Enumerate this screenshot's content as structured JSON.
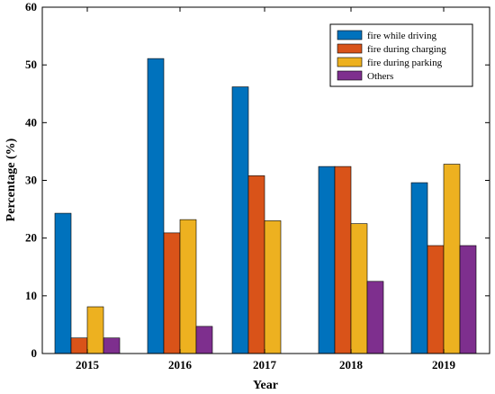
{
  "chart_data": {
    "type": "bar",
    "title": "",
    "xlabel": "Year",
    "ylabel": "Percentage (%)",
    "ylim": [
      0,
      60
    ],
    "yticks": [
      0,
      10,
      20,
      30,
      40,
      50,
      60
    ],
    "categories": [
      "2015",
      "2016",
      "2017",
      "2018",
      "2019"
    ],
    "series": [
      {
        "name": "fire while driving",
        "color": "#0072BD",
        "values": [
          24.3,
          51.1,
          46.2,
          32.4,
          29.6
        ]
      },
      {
        "name": "fire during charging",
        "color": "#D95319",
        "values": [
          2.7,
          20.9,
          30.8,
          32.4,
          18.7
        ]
      },
      {
        "name": "fire during parking",
        "color": "#EDB120",
        "values": [
          8.1,
          23.2,
          23.0,
          22.5,
          32.8
        ]
      },
      {
        "name": "Others",
        "color": "#7E2F8E",
        "values": [
          2.7,
          4.7,
          0,
          12.5,
          18.7
        ]
      }
    ],
    "legend_position": "top-right",
    "grid": false
  }
}
